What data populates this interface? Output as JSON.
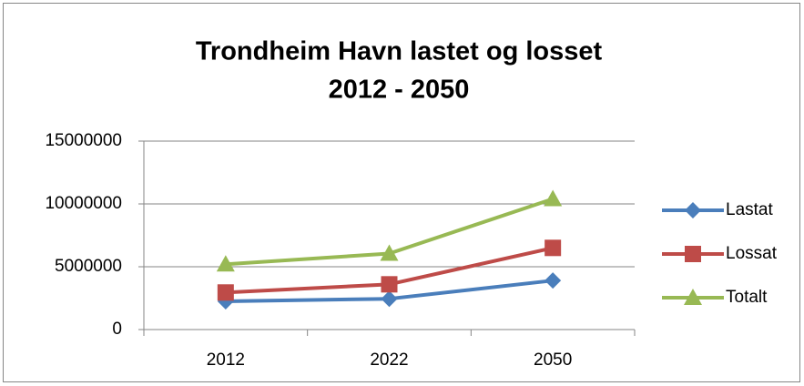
{
  "chart_data": {
    "type": "line",
    "title": [
      "Trondheim Havn lastet og losset",
      "2012 - 2050"
    ],
    "categories": [
      "2012",
      "2022",
      "2050"
    ],
    "series": [
      {
        "name": "Lastat",
        "color": "#4a7ebb",
        "marker": "diamond",
        "values": [
          2250000,
          2450000,
          3900000
        ]
      },
      {
        "name": "Lossat",
        "color": "#be4b48",
        "marker": "square",
        "values": [
          2950000,
          3600000,
          6500000
        ]
      },
      {
        "name": "Totalt",
        "color": "#98b954",
        "marker": "triangle",
        "values": [
          5200000,
          6050000,
          10400000
        ]
      }
    ],
    "ylim": [
      0,
      15000000
    ],
    "yticks": [
      0,
      5000000,
      10000000,
      15000000
    ],
    "grid": true,
    "legend": "right"
  }
}
